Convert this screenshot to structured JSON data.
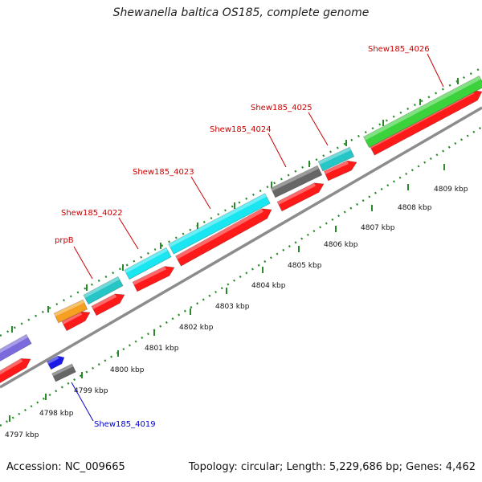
{
  "title": "Shewanella baltica OS185, complete genome",
  "accession": "Accession: NC_009665",
  "topology": "Topology: circular; Length: 5,229,686 bp; Genes: 4,462",
  "colors": {
    "backbone": "#8c8c8c",
    "forward_strand_feature": "#ff1a1a",
    "cds_teal": "#26c6c6",
    "cds_cyan": "#19e6f0",
    "cds_gray": "#666666",
    "cds_green": "#3cd23c",
    "cds_orange": "#f5a020",
    "cds_purple": "#7a6bdc",
    "cds_blue": "#1a1ae6",
    "tick_marks": "#2a8a2a",
    "label_red": "#cc0000",
    "label_blue": "#0000cc"
  },
  "scale_labels": [
    "4797 kbp",
    "4798 kbp",
    "4799 kbp",
    "4800 kbp",
    "4801 kbp",
    "4802 kbp",
    "4803 kbp",
    "4804 kbp",
    "4805 kbp",
    "4806 kbp",
    "4807 kbp",
    "4808 kbp",
    "4809 kbp"
  ],
  "gene_labels": [
    {
      "name": "Shew185_4026",
      "color": "red"
    },
    {
      "name": "Shew185_4025",
      "color": "red"
    },
    {
      "name": "Shew185_4024",
      "color": "red"
    },
    {
      "name": "Shew185_4023",
      "color": "red"
    },
    {
      "name": "Shew185_4022",
      "color": "red"
    },
    {
      "name": "prpB",
      "color": "red"
    },
    {
      "name": "Shew185_4019",
      "color": "blue"
    }
  ]
}
